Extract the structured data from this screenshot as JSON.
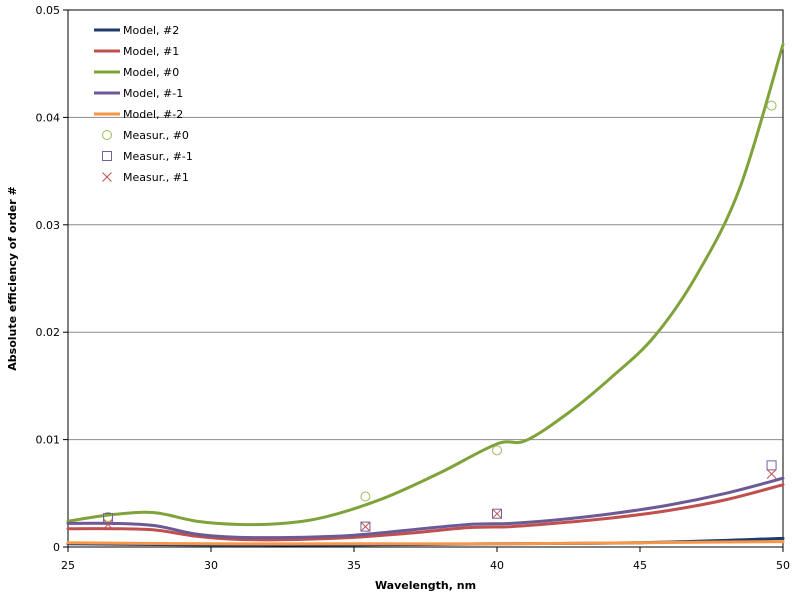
{
  "chart_data": {
    "type": "line",
    "xlabel": "Wavelength, nm",
    "ylabel": "Absolute efficiency of order #",
    "xlim": [
      25,
      50
    ],
    "ylim": [
      0,
      0.05
    ],
    "xticks": [
      "25",
      "30",
      "35",
      "40",
      "45",
      "50"
    ],
    "yticks": [
      "0",
      "0.01",
      "0.02",
      "0.03",
      "0.04",
      "0.05"
    ],
    "grid": "horizontal",
    "legend_position": "top-left",
    "series": [
      {
        "name": "Model, #2",
        "kind": "line",
        "color": "#1F3B6E",
        "x": [
          25,
          30,
          35,
          40,
          45,
          50
        ],
        "y": [
          0.0003,
          0.0002,
          0.0002,
          0.0003,
          0.0004,
          0.0008
        ]
      },
      {
        "name": "Model, #1",
        "kind": "line",
        "color": "#C0504D",
        "x": [
          25,
          26.5,
          28,
          29.5,
          31,
          33,
          35,
          37,
          39,
          40.5,
          42,
          44,
          46,
          48,
          50
        ],
        "y": [
          0.0017,
          0.0017,
          0.0016,
          0.001,
          0.0007,
          0.0007,
          0.0009,
          0.0013,
          0.0018,
          0.0019,
          0.0022,
          0.0027,
          0.0034,
          0.0044,
          0.0058
        ]
      },
      {
        "name": "Model,  #0",
        "kind": "line",
        "color": "#7FA33A",
        "x": [
          25,
          26.5,
          28,
          29.5,
          31,
          32.5,
          34,
          36,
          38,
          40,
          41,
          42.5,
          44,
          45.5,
          47,
          48.5,
          50
        ],
        "y": [
          0.0024,
          0.003,
          0.0032,
          0.0024,
          0.0021,
          0.0022,
          0.0028,
          0.0045,
          0.0069,
          0.0096,
          0.0099,
          0.0125,
          0.0158,
          0.0196,
          0.0254,
          0.0335,
          0.0468
        ]
      },
      {
        "name": "Model, #-1",
        "kind": "line",
        "color": "#6C5A96",
        "x": [
          25,
          26.5,
          28,
          29.5,
          31,
          33,
          35,
          37,
          39,
          40.5,
          42,
          44,
          46,
          48,
          50
        ],
        "y": [
          0.0022,
          0.0022,
          0.002,
          0.0012,
          0.0009,
          0.0009,
          0.0011,
          0.0016,
          0.0021,
          0.0022,
          0.0025,
          0.0031,
          0.0039,
          0.005,
          0.0064
        ]
      },
      {
        "name": "Model, #-2",
        "kind": "line",
        "color": "#F79646",
        "x": [
          25,
          30,
          35,
          40,
          45,
          50
        ],
        "y": [
          0.0004,
          0.0003,
          0.0003,
          0.0003,
          0.0004,
          0.0005
        ]
      },
      {
        "name": "Measur., #0",
        "kind": "scatter",
        "marker": "circle",
        "color": "#9BBB59",
        "x": [
          26.4,
          35.4,
          40,
          49.6
        ],
        "y": [
          0.0028,
          0.0047,
          0.009,
          0.0411
        ]
      },
      {
        "name": "Measur., #-1",
        "kind": "scatter",
        "marker": "square",
        "color": "#7060A0",
        "x": [
          26.4,
          35.4,
          40,
          49.6
        ],
        "y": [
          0.0027,
          0.0019,
          0.0031,
          0.0076
        ]
      },
      {
        "name": "Measur., #1",
        "kind": "scatter",
        "marker": "cross",
        "color": "#C0504D",
        "x": [
          26.4,
          35.4,
          40,
          49.6
        ],
        "y": [
          0.0021,
          0.0019,
          0.0031,
          0.0068
        ]
      }
    ]
  }
}
